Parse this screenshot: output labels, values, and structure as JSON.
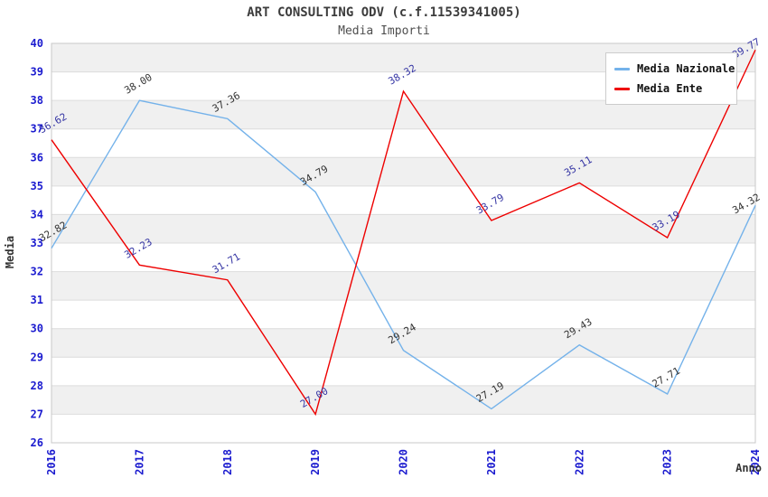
{
  "title": "ART CONSULTING ODV (c.f.11539341005)",
  "subtitle": "Media Importi",
  "chart_data": {
    "type": "line",
    "x": [
      2016,
      2017,
      2018,
      2019,
      2020,
      2021,
      2022,
      2023,
      2024
    ],
    "xlabel": "Anno",
    "ylabel": "Media",
    "ylim": [
      26,
      40
    ],
    "y_tick_step": 1,
    "grid": true,
    "alternate_bands": true,
    "legend_position": "top-right",
    "series": [
      {
        "name": "Media Nazionale",
        "color": "#74b2ea",
        "label_color": "#333333",
        "values": [
          32.82,
          38.0,
          37.36,
          34.79,
          29.24,
          27.19,
          29.43,
          27.71,
          34.32
        ]
      },
      {
        "name": "Media Ente",
        "color": "#ee0000",
        "label_color": "#3535a4",
        "values": [
          36.62,
          32.23,
          31.71,
          27.0,
          38.32,
          33.79,
          35.11,
          33.19,
          39.77
        ]
      }
    ],
    "colors": {
      "band": "#f0f0f0",
      "gridline": "#dcdcdc",
      "plot_border": "#c9c9c9",
      "tick_label": "#1b1bcf",
      "axis_title": "#333333"
    }
  }
}
